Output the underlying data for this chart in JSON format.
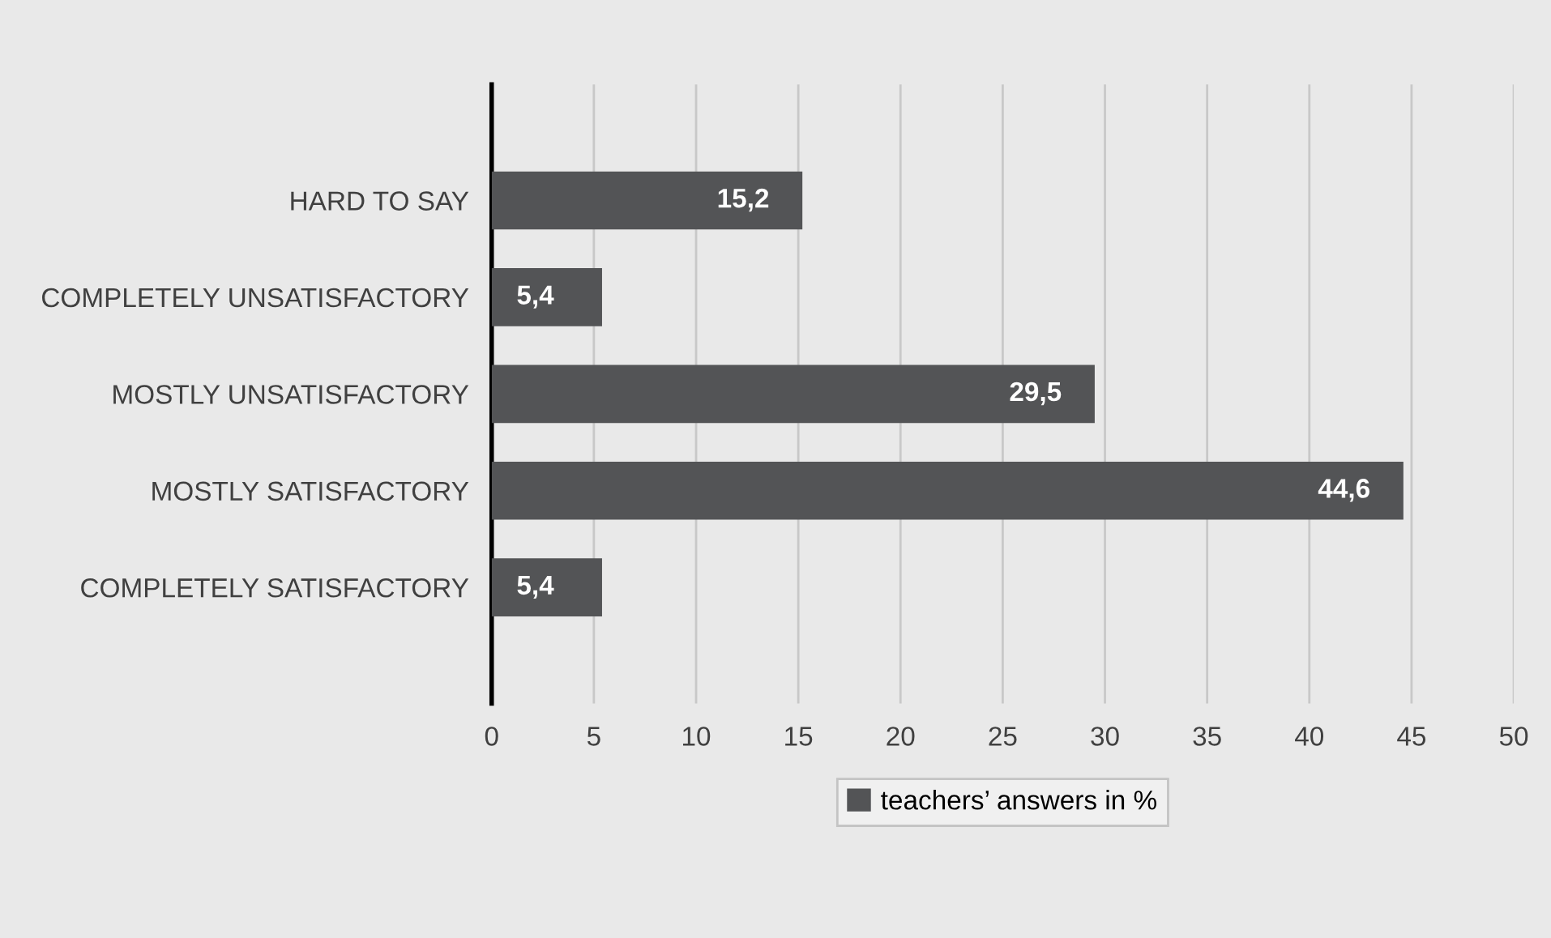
{
  "chart_data": {
    "type": "bar",
    "orientation": "horizontal",
    "categories": [
      "HARD TO SAY",
      "COMPLETELY UNSATISFACTORY",
      "MOSTLY UNSATISFACTORY",
      "MOSTLY SATISFACTORY",
      "COMPLETELY SATISFACTORY"
    ],
    "series": [
      {
        "name": "teachers’ answers in %",
        "color": "#535456",
        "values": [
          15.2,
          5.4,
          29.5,
          44.6,
          5.4
        ],
        "value_labels": [
          "15,2",
          "5,4",
          "29,5",
          "44,6",
          "5,4"
        ]
      }
    ],
    "xlim": [
      0,
      50
    ],
    "xticks": [
      0,
      5,
      10,
      15,
      20,
      25,
      30,
      35,
      40,
      45,
      50
    ],
    "grid": "x",
    "legend": "bottom"
  }
}
